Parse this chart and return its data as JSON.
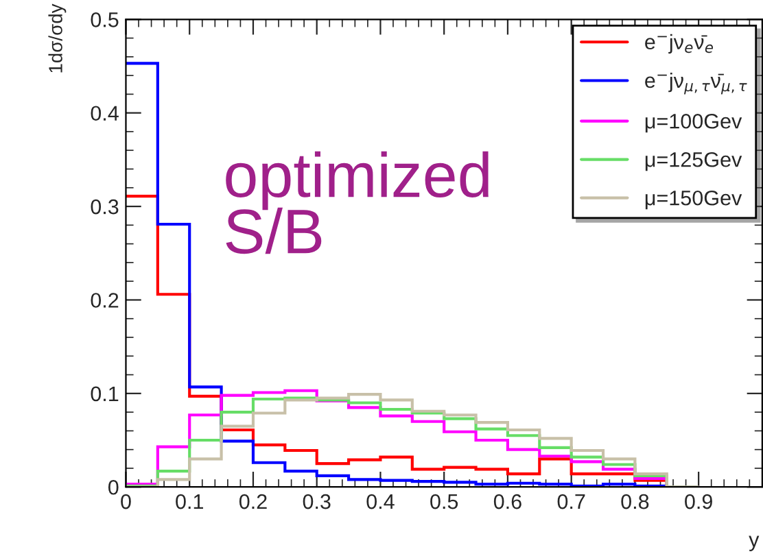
{
  "chart_data": {
    "type": "histogram",
    "xlabel": "y",
    "ylabel": "1dσ/σdy",
    "bins": [
      0,
      0.05,
      0.1,
      0.15,
      0.2,
      0.25,
      0.3,
      0.35,
      0.4,
      0.45,
      0.5,
      0.55,
      0.6,
      0.65,
      0.7,
      0.75,
      0.8,
      0.85,
      0.9
    ],
    "series": [
      {
        "name": "e$^{−}$jν$_{e}$ν̄$_{e}$",
        "color": "#ff0000",
        "values": [
          0.311,
          0.206,
          0.097,
          0.061,
          0.045,
          0.039,
          0.025,
          0.029,
          0.032,
          0.019,
          0.021,
          0.019,
          0.014,
          0.03,
          0.014,
          0.014,
          0.007,
          0
        ]
      },
      {
        "name": "e$^{−}$jν$_{μ,τ}$ν̄$_{μ,τ}$",
        "color": "#0000ff",
        "values": [
          0.453,
          0.281,
          0.107,
          0.049,
          0.026,
          0.017,
          0.012,
          0.008,
          0.007,
          0.006,
          0.005,
          0.003,
          0.004,
          0.003,
          0.001,
          0.003,
          0.001,
          0
        ]
      },
      {
        "name": "μ=100Gev",
        "color": "#ff00ff",
        "values": [
          0.003,
          0.043,
          0.077,
          0.098,
          0.101,
          0.103,
          0.092,
          0.085,
          0.076,
          0.07,
          0.059,
          0.05,
          0.04,
          0.033,
          0.027,
          0.019,
          0.009,
          0
        ]
      },
      {
        "name": "μ=125Gev",
        "color": "#66dd66",
        "values": [
          0.001,
          0.017,
          0.05,
          0.08,
          0.094,
          0.095,
          0.093,
          0.09,
          0.083,
          0.079,
          0.073,
          0.062,
          0.055,
          0.042,
          0.032,
          0.024,
          0.012,
          0
        ]
      },
      {
        "name": "μ=150Gev",
        "color": "#c8c0a8",
        "values": [
          0,
          0.008,
          0.03,
          0.065,
          0.079,
          0.093,
          0.095,
          0.099,
          0.093,
          0.081,
          0.077,
          0.069,
          0.061,
          0.052,
          0.039,
          0.03,
          0.014,
          0
        ]
      }
    ],
    "xlim": [
      0,
      1
    ],
    "ylim": [
      0,
      0.5
    ],
    "xticks": [
      0,
      0.1,
      0.2,
      0.3,
      0.4,
      0.5,
      0.6,
      0.7,
      0.8,
      0.9
    ],
    "yticks": [
      0,
      0.1,
      0.2,
      0.3,
      0.4,
      0.5
    ],
    "legend": "top right",
    "annotations": [
      "optimized\nS/B"
    ]
  }
}
